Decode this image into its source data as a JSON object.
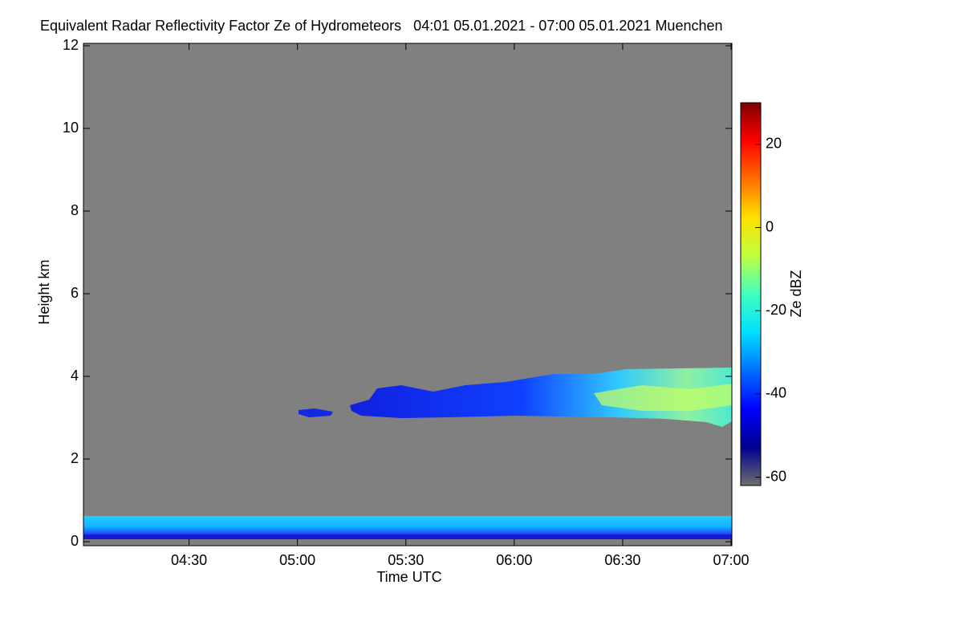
{
  "chart_data": {
    "type": "heatmap",
    "title": "Equivalent Radar Reflectivity Factor Ze of Hydrometeors   04:01 05.01.2021 - 07:00 05.01.2021 Muenchen",
    "x_label": "Time UTC",
    "y_label": "Height km",
    "colorbar_label": "Ze dBZ",
    "xlim": [
      241,
      420
    ],
    "xticks": [
      {
        "value": 270,
        "label": "04:30"
      },
      {
        "value": 300,
        "label": "05:00"
      },
      {
        "value": 330,
        "label": "05:30"
      },
      {
        "value": 360,
        "label": "06:00"
      },
      {
        "value": 390,
        "label": "06:30"
      },
      {
        "value": 420,
        "label": "07:00"
      }
    ],
    "ylim": [
      0,
      12
    ],
    "yticks": [
      0,
      2,
      4,
      6,
      8,
      10,
      12
    ],
    "clim": [
      -62,
      30
    ],
    "cticks": [
      -60,
      -40,
      -20,
      0,
      20
    ],
    "colormap": [
      "#6e6e6e",
      "#00008f",
      "#0000ff",
      "#0070ff",
      "#00e0ff",
      "#40ffbf",
      "#c0ff40",
      "#ffe000",
      "#ff7000",
      "#ff0000",
      "#800000"
    ],
    "background": "#808080"
  }
}
